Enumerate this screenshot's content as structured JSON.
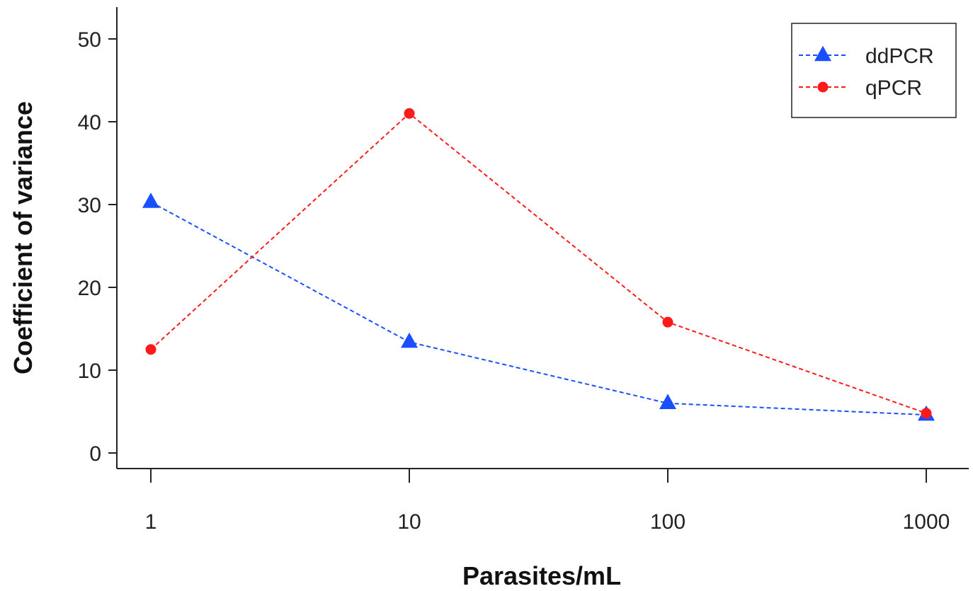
{
  "chart_data": {
    "type": "line",
    "title": "",
    "xlabel": "Parasites/mL",
    "ylabel": "Coefficient of variance",
    "x_scale": "log",
    "x": [
      1,
      10,
      100,
      1000
    ],
    "x_tick_labels": [
      "1",
      "10",
      "100",
      "1000"
    ],
    "ylim": [
      0,
      50
    ],
    "y_ticks": [
      0,
      10,
      20,
      30,
      40,
      50
    ],
    "y_tick_labels": [
      "0",
      "10",
      "20",
      "30",
      "40",
      "50"
    ],
    "grid": false,
    "legend_position": "top-right",
    "series": [
      {
        "name": "ddPCR",
        "values": [
          30.3,
          13.4,
          6.0,
          4.6
        ],
        "color": "#1a4fff",
        "marker": "triangle",
        "line_style": "dashed"
      },
      {
        "name": "qPCR",
        "values": [
          12.5,
          41.0,
          15.8,
          4.8
        ],
        "color": "#ff1a1a",
        "marker": "circle",
        "line_style": "dashed"
      }
    ]
  }
}
